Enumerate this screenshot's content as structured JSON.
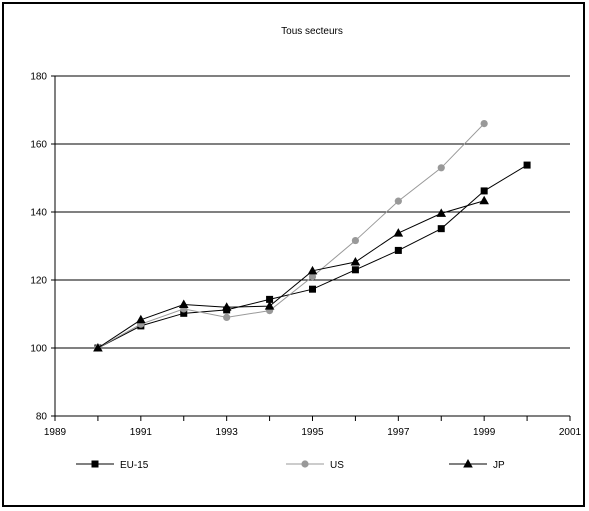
{
  "chart_data": {
    "type": "line",
    "title": "Tous secteurs",
    "xlabel": "",
    "ylabel": "",
    "xlim": [
      1989,
      2001
    ],
    "ylim": [
      80,
      180
    ],
    "x_ticks": [
      "1989",
      "1991",
      "1993",
      "1995",
      "1997",
      "1999",
      "2001"
    ],
    "y_ticks": [
      "80",
      "100",
      "120",
      "140",
      "160",
      "180"
    ],
    "grid": "horizontal",
    "legend_position": "bottom",
    "series": [
      {
        "name": "EU-15",
        "color": "#000000",
        "marker": "square",
        "x": [
          1990,
          1991,
          1992,
          1993,
          1994,
          1995,
          1996,
          1997,
          1998,
          1999,
          2000
        ],
        "values": [
          100,
          106.5,
          110.2,
          111.2,
          114.3,
          117.3,
          123,
          128.7,
          135.1,
          146.2,
          153.8
        ]
      },
      {
        "name": "US",
        "color": "#999999",
        "marker": "circle",
        "x": [
          1990,
          1991,
          1992,
          1993,
          1994,
          1995,
          1996,
          1997,
          1998,
          1999
        ],
        "values": [
          100,
          107,
          111.5,
          109,
          111,
          121,
          131.6,
          143.2,
          153,
          166
        ]
      },
      {
        "name": "JP",
        "color": "#000000",
        "marker": "triangle",
        "x": [
          1990,
          1991,
          1992,
          1993,
          1994,
          1995,
          1996,
          1997,
          1998,
          1999
        ],
        "values": [
          100,
          108.3,
          112.8,
          112,
          112.3,
          122.7,
          125.3,
          133.8,
          139.6,
          143.3
        ]
      }
    ]
  }
}
